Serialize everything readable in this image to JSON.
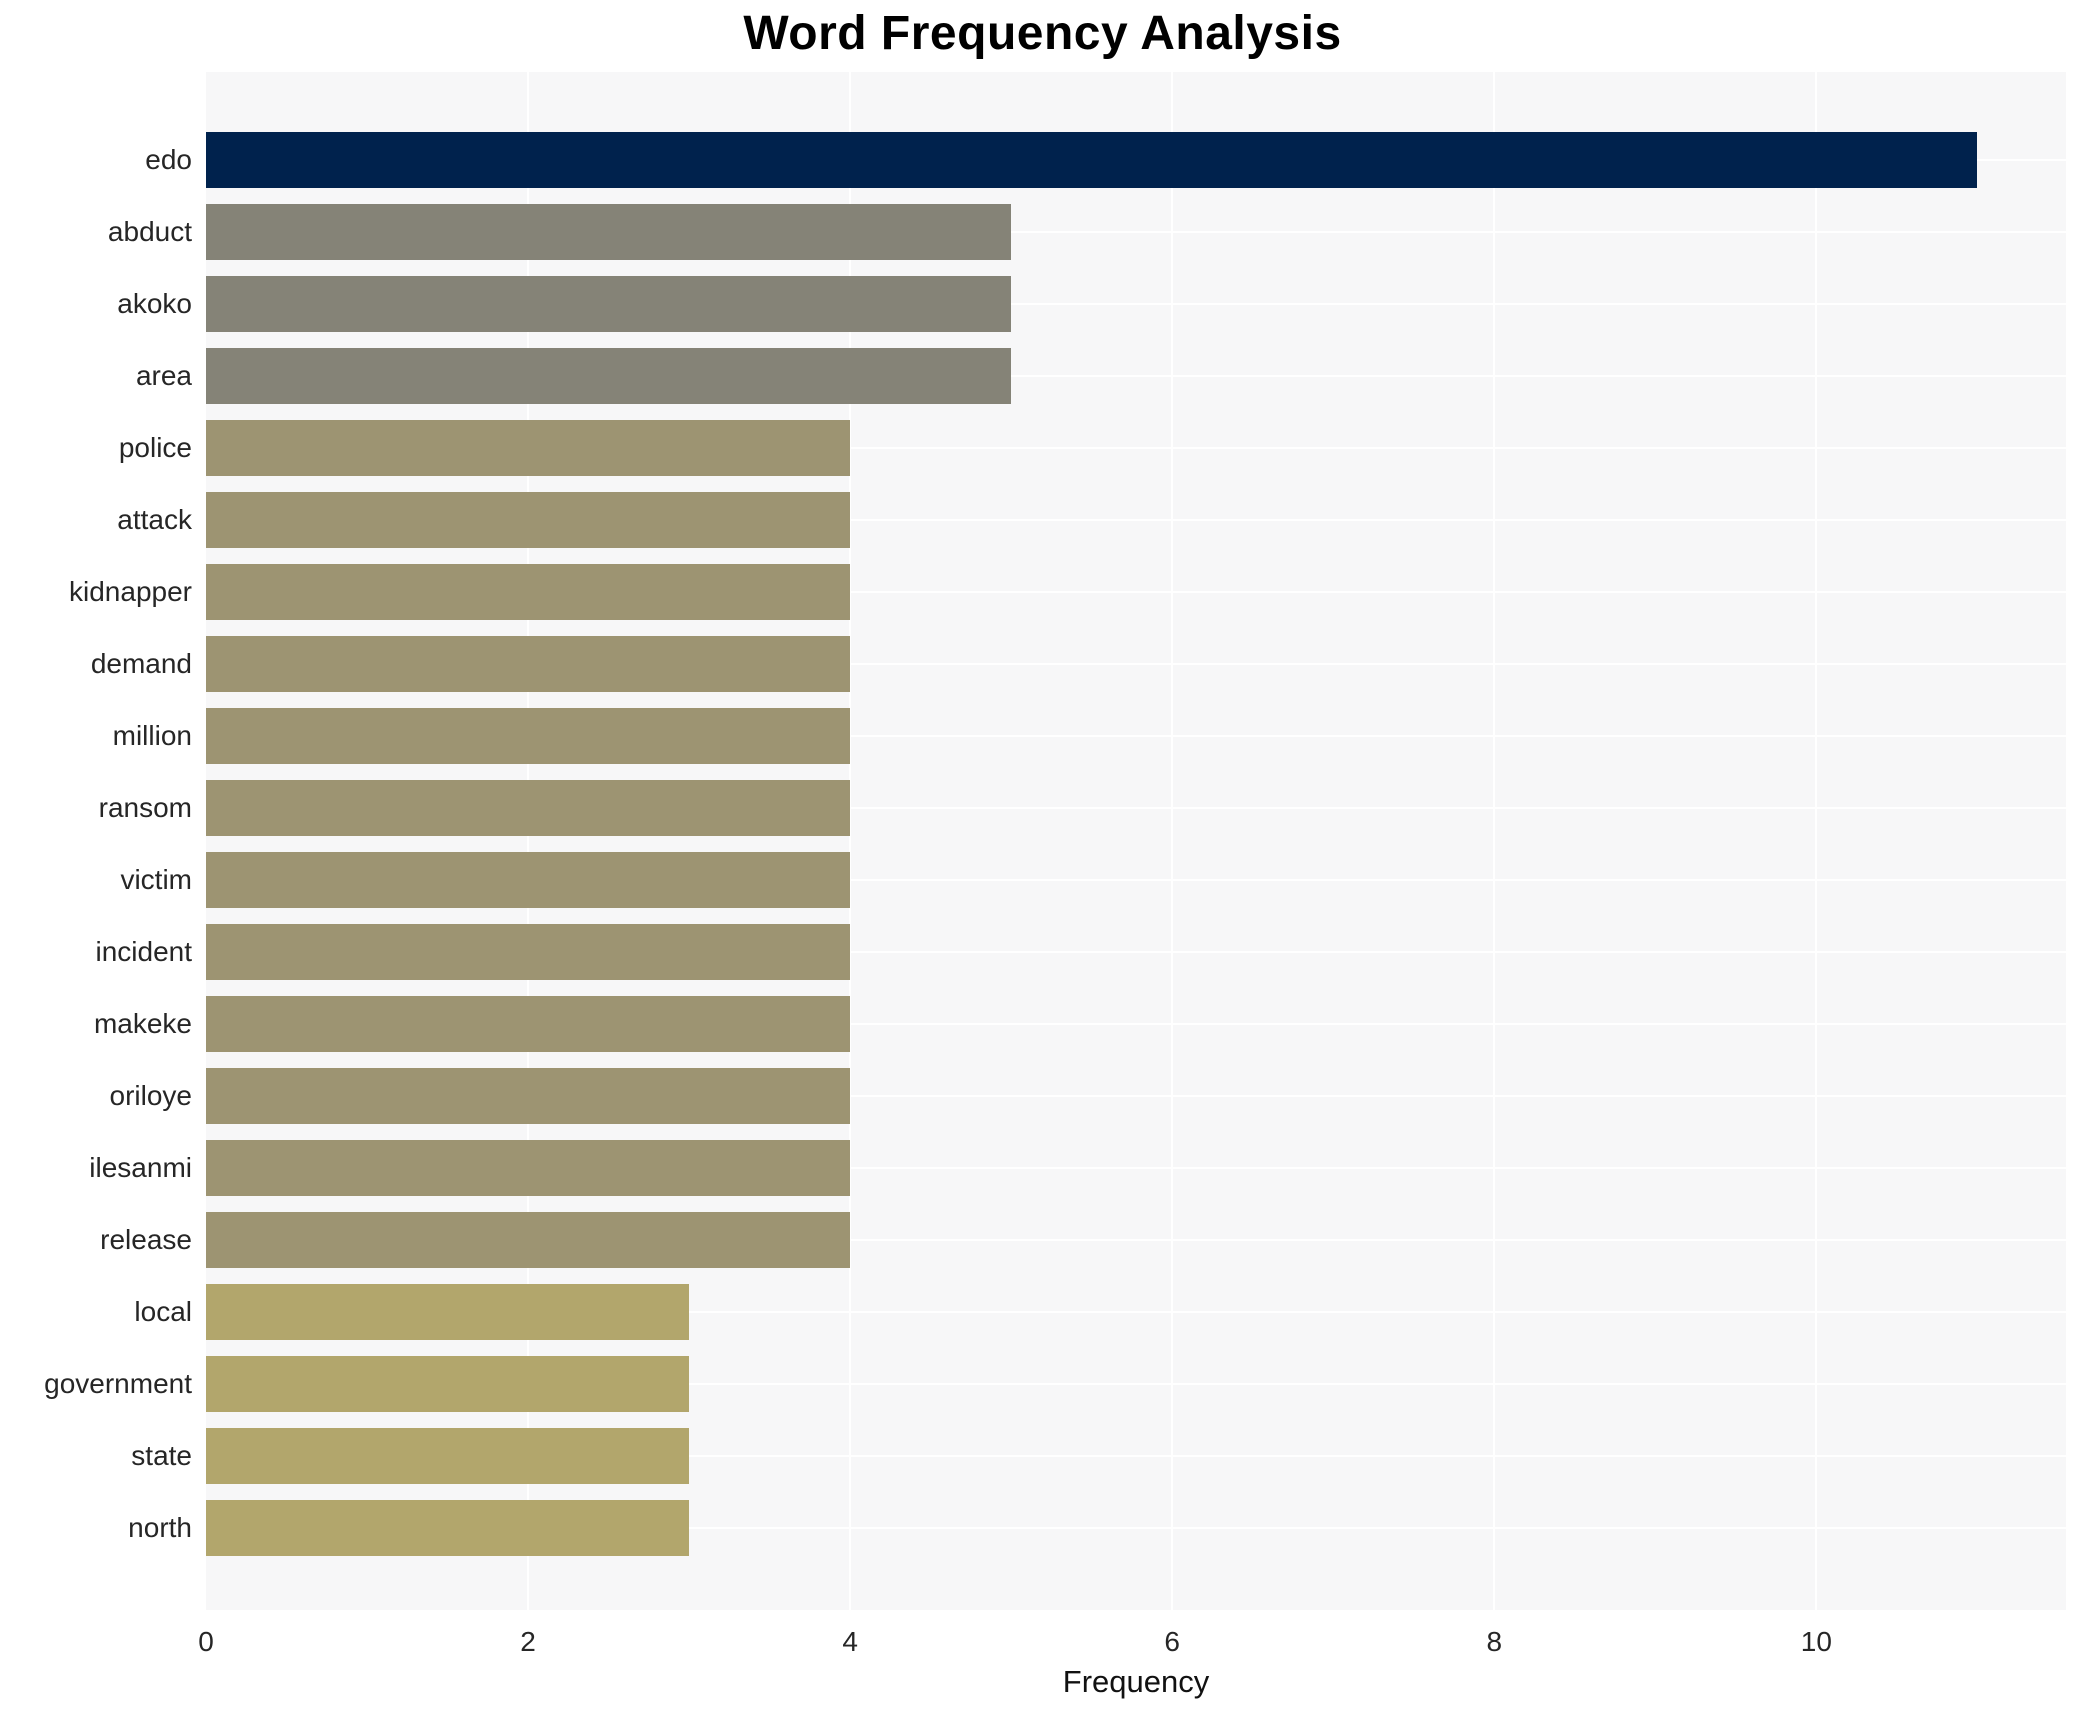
{
  "title": "Word Frequency Analysis",
  "chart_data": {
    "type": "bar",
    "orientation": "horizontal",
    "title": "Word Frequency Analysis",
    "xlabel": "Frequency",
    "ylabel": "",
    "categories": [
      "edo",
      "abduct",
      "akoko",
      "area",
      "police",
      "attack",
      "kidnapper",
      "demand",
      "million",
      "ransom",
      "victim",
      "incident",
      "makeke",
      "oriloye",
      "ilesanmi",
      "release",
      "local",
      "government",
      "state",
      "north"
    ],
    "values": [
      11,
      5,
      5,
      5,
      4,
      4,
      4,
      4,
      4,
      4,
      4,
      4,
      4,
      4,
      4,
      4,
      3,
      3,
      3,
      3
    ],
    "xticks": [
      0,
      2,
      4,
      6,
      8,
      10
    ],
    "xlim": [
      0,
      11.55
    ],
    "grid": true,
    "legend": false,
    "colors": {
      "value_color_map": {
        "11": "#00224d",
        "5": "#858377",
        "4": "#9d9472",
        "3": "#b2a66c"
      },
      "plot_bg": "#f7f7f8",
      "grid_color": "#ffffff",
      "tick_text": "#262626",
      "title_text": "#000000"
    }
  }
}
